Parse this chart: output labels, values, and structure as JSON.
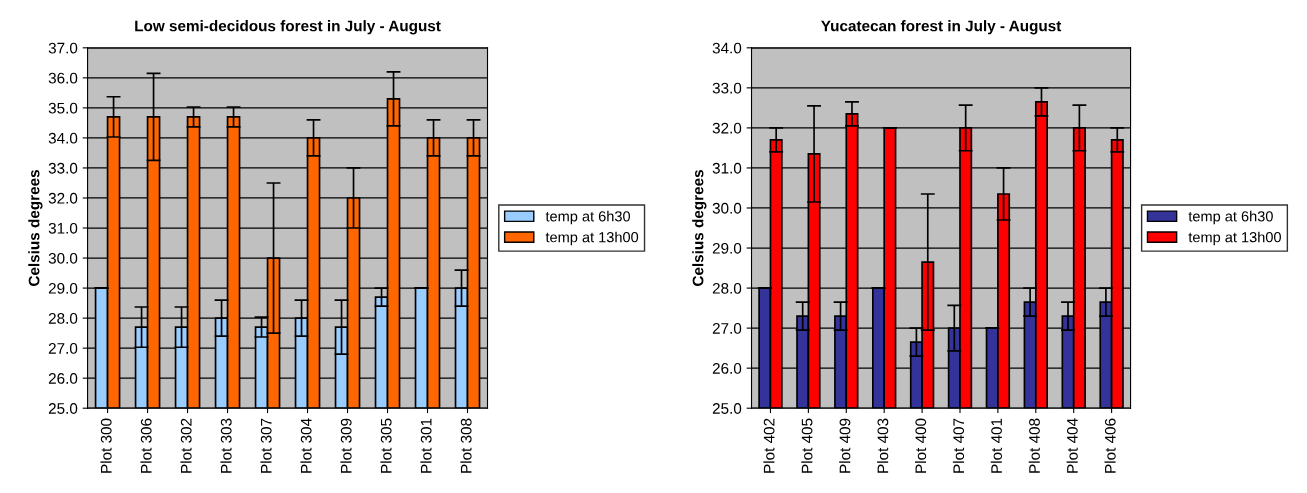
{
  "chart_data": [
    {
      "type": "bar",
      "title": "Low semi-decidous forest in July - August",
      "ylabel": "Celsius degrees",
      "categories": [
        "Plot 300",
        "Plot 306",
        "Plot 302",
        "Plot 303",
        "Plot 307",
        "Plot 304",
        "Plot 309",
        "Plot 305",
        "Plot 301",
        "Plot 308"
      ],
      "series": [
        {
          "name": "temp at 6h30",
          "color": "#99ccff",
          "values": [
            29.0,
            27.7,
            27.7,
            28.0,
            27.7,
            28.0,
            27.7,
            28.7,
            29.0,
            29.0
          ],
          "errors": [
            0,
            0.67,
            0.67,
            0.6,
            0.33,
            0.6,
            0.9,
            0.3,
            0,
            0.6
          ]
        },
        {
          "name": "temp at 13h00",
          "color": "#ff6600",
          "values": [
            34.7,
            34.7,
            34.7,
            34.7,
            30.0,
            34.0,
            32.0,
            35.3,
            34.0,
            34.0
          ],
          "errors": [
            0.67,
            1.45,
            0.33,
            0.33,
            2.5,
            0.6,
            1.0,
            0.9,
            0.6,
            0.6
          ]
        }
      ],
      "ylim": [
        25,
        37
      ],
      "yticks": [
        {
          "value": 25,
          "label": "25.0"
        },
        {
          "value": 26,
          "label": "26.0"
        },
        {
          "value": 27,
          "label": "27.0"
        },
        {
          "value": 28,
          "label": "28.0"
        },
        {
          "value": 29,
          "label": "29.0"
        },
        {
          "value": 30,
          "label": "30.0"
        },
        {
          "value": 31,
          "label": "31.0"
        },
        {
          "value": 32,
          "label": "32.0"
        },
        {
          "value": 33,
          "label": "33.0"
        },
        {
          "value": 34,
          "label": "34.0"
        },
        {
          "value": 35,
          "label": "35.0"
        },
        {
          "value": 36,
          "label": "36.0"
        },
        {
          "value": 37,
          "label": "37.0"
        }
      ],
      "grid": "y",
      "legend": "right"
    },
    {
      "type": "bar",
      "title": "Yucatecan forest in July - August",
      "ylabel": "Celsius degrees",
      "categories": [
        "Plot 402",
        "Plot 405",
        "Plot 409",
        "Plot 403",
        "Plot 400",
        "Plot 407",
        "Plot 401",
        "Plot 408",
        "Plot 404",
        "Plot 406"
      ],
      "series": [
        {
          "name": "temp at 6h30",
          "color": "#333399",
          "values": [
            28.0,
            27.3,
            27.3,
            28.0,
            26.65,
            27.0,
            27.0,
            27.65,
            27.3,
            27.65
          ],
          "errors": [
            0,
            0.35,
            0.35,
            0,
            0.35,
            0.57,
            0,
            0.35,
            0.35,
            0.35
          ]
        },
        {
          "name": "temp at 13h00",
          "color": "#ff0000",
          "values": [
            31.7,
            31.35,
            32.35,
            32.0,
            28.65,
            32.0,
            30.35,
            32.65,
            32.0,
            31.7
          ],
          "errors": [
            0.3,
            1.2,
            0.3,
            0,
            1.7,
            0.57,
            0.65,
            0.35,
            0.57,
            0.3
          ]
        }
      ],
      "ylim": [
        25,
        34
      ],
      "yticks": [
        {
          "value": 25,
          "label": "25.0"
        },
        {
          "value": 26,
          "label": "26.0"
        },
        {
          "value": 27,
          "label": "27.0"
        },
        {
          "value": 28,
          "label": "28.0"
        },
        {
          "value": 29,
          "label": "29.0"
        },
        {
          "value": 30,
          "label": "30.0"
        },
        {
          "value": 31,
          "label": "31.0"
        },
        {
          "value": 32,
          "label": "32.0"
        },
        {
          "value": 33,
          "label": "33.0"
        },
        {
          "value": 34,
          "label": "34.0"
        }
      ],
      "grid": "y",
      "legend": "right"
    }
  ]
}
